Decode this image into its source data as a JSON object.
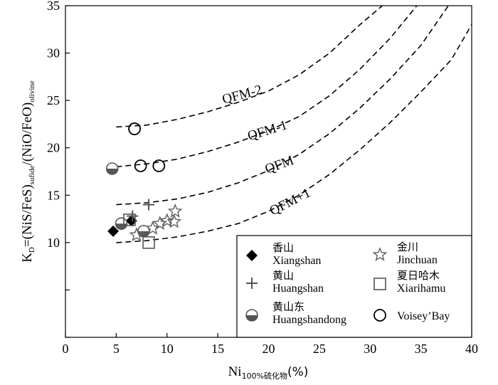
{
  "chart_data": {
    "type": "scatter",
    "xlim": [
      0,
      40
    ],
    "ylim": [
      0,
      35
    ],
    "x_ticks": [
      0,
      5,
      10,
      15,
      20,
      25,
      30,
      35,
      40
    ],
    "y_ticks": [
      10,
      15,
      20,
      25,
      30,
      35
    ],
    "y_tick_labels": [
      "10",
      "15",
      "20",
      "25",
      "30",
      "35"
    ],
    "xlabel_main": "Ni",
    "xlabel_sub": "100%硫化物",
    "xlabel_unit": "(%)",
    "ylabel": {
      "k": "K",
      "d": "D",
      "eq": "=(NiS/FeS)",
      "sub1": "sufide",
      "mid": "/(NiO/FeO)",
      "sub2": "olivine"
    },
    "legend_position": "bottom-right",
    "grid": false,
    "curves": [
      {
        "name": "QFM-2",
        "color": "#000000",
        "points": [
          [
            5,
            22.2
          ],
          [
            8,
            22.4
          ],
          [
            11,
            23.0
          ],
          [
            14,
            23.8
          ],
          [
            17,
            24.8
          ],
          [
            20,
            26.0
          ],
          [
            23,
            27.7
          ],
          [
            26,
            30.0
          ],
          [
            29,
            33.0
          ],
          [
            31.2,
            35
          ]
        ]
      },
      {
        "name": "QFM-1",
        "color": "#000000",
        "points": [
          [
            5,
            18.0
          ],
          [
            8,
            18.3
          ],
          [
            11,
            18.8
          ],
          [
            14,
            19.6
          ],
          [
            17,
            20.6
          ],
          [
            20,
            21.8
          ],
          [
            23,
            23.3
          ],
          [
            26,
            25.5
          ],
          [
            29,
            28.3
          ],
          [
            32,
            31.6
          ],
          [
            34.6,
            35
          ]
        ]
      },
      {
        "name": "QFM",
        "color": "#000000",
        "points": [
          [
            5,
            14.0
          ],
          [
            8,
            14.2
          ],
          [
            11,
            14.6
          ],
          [
            14,
            15.3
          ],
          [
            17,
            16.3
          ],
          [
            20,
            17.6
          ],
          [
            23,
            19.3
          ],
          [
            26,
            21.5
          ],
          [
            29,
            24.2
          ],
          [
            32,
            27.3
          ],
          [
            35,
            30.8
          ],
          [
            37.7,
            35
          ]
        ]
      },
      {
        "name": "QFM+1",
        "color": "#000000",
        "points": [
          [
            5,
            10.0
          ],
          [
            8,
            10.2
          ],
          [
            11,
            10.6
          ],
          [
            14,
            11.2
          ],
          [
            17,
            12.0
          ],
          [
            20,
            13.3
          ],
          [
            23,
            15.0
          ],
          [
            26,
            17.2
          ],
          [
            29,
            19.8
          ],
          [
            32,
            22.7
          ],
          [
            35,
            25.9
          ],
          [
            38,
            29.3
          ],
          [
            40,
            33.0
          ]
        ]
      }
    ],
    "curve_labels": [
      {
        "text": "QFM-2",
        "x": 17.5,
        "y": 25.2,
        "angle": -15
      },
      {
        "text": "QFM-1",
        "x": 20.0,
        "y": 21.4,
        "angle": -17
      },
      {
        "text": "QFM",
        "x": 21.2,
        "y": 17.8,
        "angle": -20
      },
      {
        "text": "QFM+1",
        "x": 22.3,
        "y": 13.9,
        "angle": -27
      }
    ],
    "series": [
      {
        "name_cn": "香山",
        "name": "Xiangshan",
        "marker": "diamond",
        "color": "#000000",
        "points": [
          [
            4.7,
            11.2
          ],
          [
            6.5,
            12.3
          ]
        ]
      },
      {
        "name_cn": "黄山",
        "name": "Huangshan",
        "marker": "plus",
        "color": "#555555",
        "points": [
          [
            6.6,
            12.8
          ],
          [
            8.2,
            14.0
          ]
        ]
      },
      {
        "name_cn": "黄山东",
        "name": "Huangshandong",
        "marker": "half-circle",
        "color": "#555555",
        "points": [
          [
            4.6,
            17.8
          ],
          [
            5.5,
            12.0
          ],
          [
            7.7,
            11.2
          ]
        ]
      },
      {
        "name_cn": "金川",
        "name": "Jinchuan",
        "marker": "star",
        "color": "#666666",
        "points": [
          [
            7.0,
            10.8
          ],
          [
            8.6,
            11.5
          ],
          [
            9.3,
            12.0
          ],
          [
            10.0,
            12.3
          ],
          [
            10.7,
            12.2
          ],
          [
            10.8,
            13.3
          ]
        ]
      },
      {
        "name_cn": "夏日哈木",
        "name": "Xiarihamu",
        "marker": "square",
        "color": "#555555",
        "points": [
          [
            6.3,
            12.4
          ],
          [
            8.2,
            10.0
          ]
        ]
      },
      {
        "name_cn": "",
        "name": "Voisey’Bay",
        "marker": "circle",
        "color": "#000000",
        "points": [
          [
            6.8,
            22.0
          ],
          [
            7.4,
            18.1
          ],
          [
            9.2,
            18.1
          ]
        ]
      }
    ]
  }
}
